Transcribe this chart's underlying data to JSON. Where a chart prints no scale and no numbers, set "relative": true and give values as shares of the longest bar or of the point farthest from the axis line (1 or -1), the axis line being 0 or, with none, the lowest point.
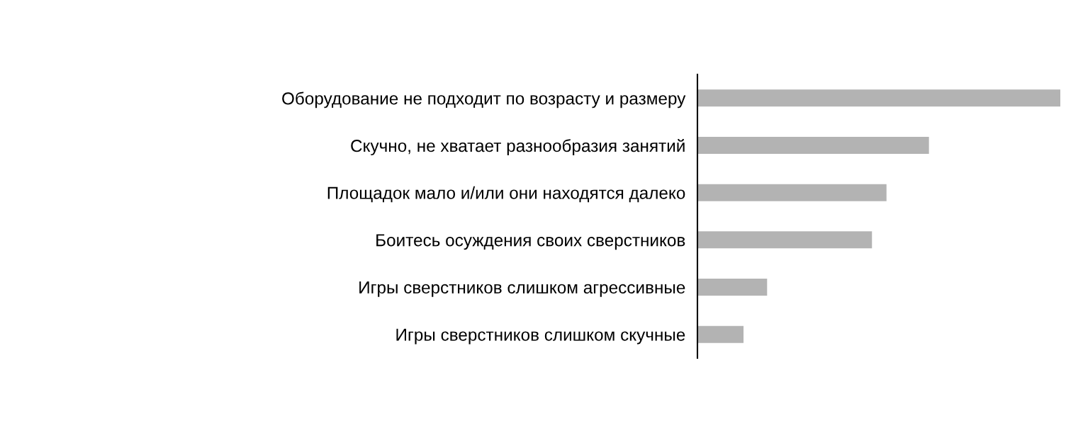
{
  "chart_data": {
    "type": "bar",
    "orientation": "horizontal",
    "relative": true,
    "categories": [
      "Оборудование не подходит по возрасту и размеру",
      "Скучно, не хватает разнообразия занятий",
      "Площадок мало и/или они находятся далеко",
      "Боитесь осуждения своих сверстников",
      "Игры сверстников слишком агрессивные",
      "Игры сверстников слишком скучные"
    ],
    "values": [
      1,
      0.638,
      0.521,
      0.481,
      0.192,
      0.127
    ],
    "color": "#b3b3b3",
    "grid": false,
    "legend": false
  }
}
